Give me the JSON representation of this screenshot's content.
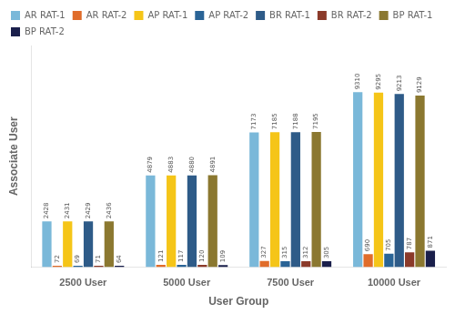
{
  "chart_data": {
    "type": "bar",
    "xlabel": "User Group",
    "ylabel": "Associate User",
    "categories": [
      "2500 User",
      "5000 User",
      "7500 User",
      "10000 User"
    ],
    "series": [
      {
        "name": "AR RAT-1",
        "color": "#7ab8d9",
        "values": [
          2428,
          4879,
          7173,
          9310
        ]
      },
      {
        "name": "AR RAT-2",
        "color": "#e06c2a",
        "values": [
          72,
          121,
          327,
          690
        ]
      },
      {
        "name": "AP RAT-1",
        "color": "#f5c518",
        "values": [
          2431,
          4883,
          7185,
          9295
        ]
      },
      {
        "name": "AP RAT-2",
        "color": "#2a6496",
        "values": [
          69,
          117,
          315,
          705
        ]
      },
      {
        "name": "BR RAT-1",
        "color": "#2e5b88",
        "values": [
          2429,
          4880,
          7188,
          9213
        ]
      },
      {
        "name": "BR RAT-2",
        "color": "#8b3a2a",
        "values": [
          71,
          120,
          312,
          787
        ]
      },
      {
        "name": "BP RAT-1",
        "color": "#8b7830",
        "values": [
          2436,
          4891,
          7195,
          9129
        ]
      },
      {
        "name": "BP RAT-2",
        "color": "#1a1f4b",
        "values": [
          64,
          109,
          305,
          871
        ]
      }
    ],
    "ylim": [
      0,
      11800
    ],
    "grid": false,
    "legend": "top",
    "data_labels": true,
    "tick_labels": "x"
  }
}
